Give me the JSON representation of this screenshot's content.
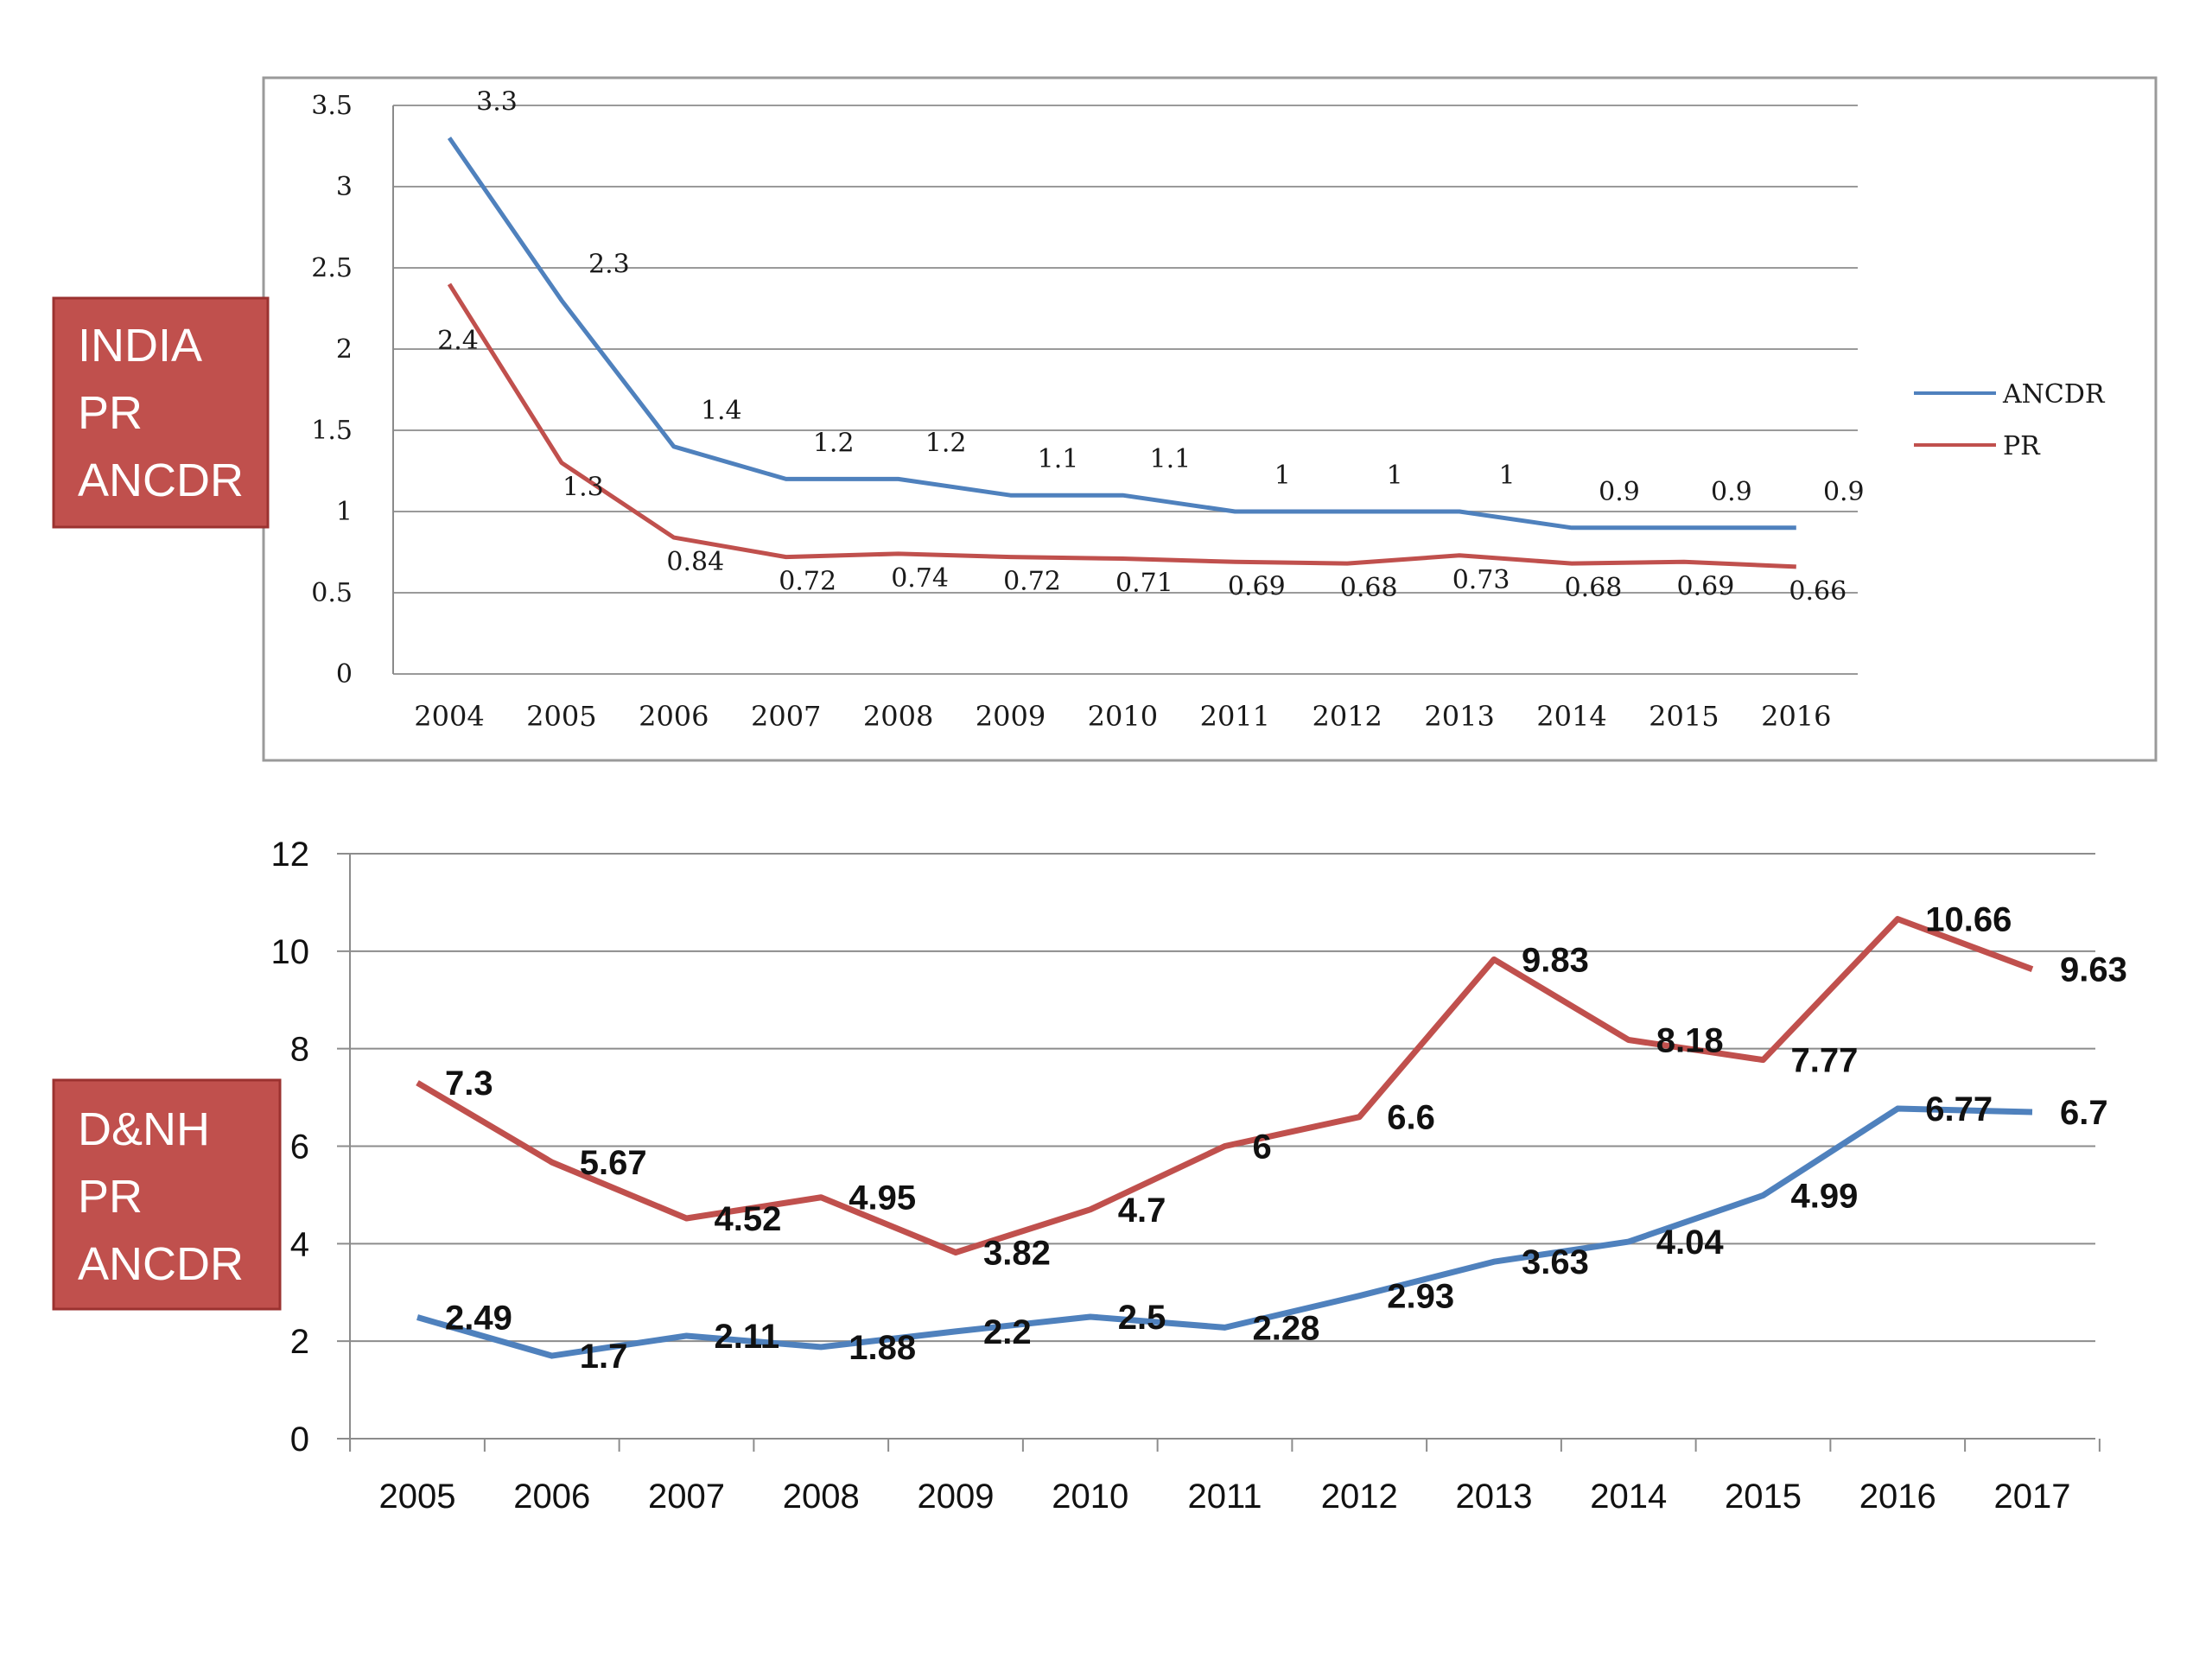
{
  "tags": [
    {
      "lines": [
        "INDIA",
        "PR",
        "ANCDR"
      ]
    },
    {
      "lines": [
        "D&NH",
        "PR",
        "ANCDR"
      ]
    }
  ],
  "colors": {
    "ancdr": "#4f81bd",
    "pr": "#c0504d",
    "tag_fill": "#c0504d",
    "tag_border": "#9b3230"
  },
  "chart_data": [
    {
      "type": "line",
      "x": [
        "2004",
        "2005",
        "2006",
        "2007",
        "2008",
        "2009",
        "2010",
        "2011",
        "2012",
        "2013",
        "2014",
        "2015",
        "2016"
      ],
      "ylim": [
        0,
        3.5
      ],
      "yticks": [
        "0",
        "0.5",
        "1",
        "1.5",
        "2",
        "2.5",
        "3",
        "3.5"
      ],
      "legend_position": "right",
      "grid": true,
      "series": [
        {
          "name": "ANCDR",
          "values": [
            3.3,
            2.3,
            1.4,
            1.2,
            1.2,
            1.1,
            1.1,
            1,
            1,
            1,
            0.9,
            0.9,
            0.9
          ],
          "labels": [
            "3.3",
            "2.3",
            "1.4",
            "1.2",
            "1.2",
            "1.1",
            "1.1",
            "1",
            "1",
            "1",
            "0.9",
            "0.9",
            "0.9"
          ]
        },
        {
          "name": "PR",
          "values": [
            2.4,
            1.3,
            0.84,
            0.72,
            0.74,
            0.72,
            0.71,
            0.69,
            0.68,
            0.73,
            0.68,
            0.69,
            0.66
          ],
          "labels": [
            "2.4",
            "1.3",
            "0.84",
            "0.72",
            "0.74",
            "0.72",
            "0.71",
            "0.69",
            "0.68",
            "0.73",
            "0.68",
            "0.69",
            "0.66"
          ]
        }
      ]
    },
    {
      "type": "line",
      "x": [
        "2005",
        "2006",
        "2007",
        "2008",
        "2009",
        "2010",
        "2011",
        "2012",
        "2013",
        "2014",
        "2015",
        "2016",
        "2017"
      ],
      "ylim": [
        0,
        12
      ],
      "yticks": [
        "0",
        "2",
        "4",
        "6",
        "8",
        "10",
        "12"
      ],
      "grid": true,
      "series": [
        {
          "values": [
            7.3,
            5.67,
            4.52,
            4.95,
            3.82,
            4.7,
            6,
            6.6,
            9.83,
            8.18,
            7.77,
            10.66,
            9.63
          ],
          "labels": [
            "7.3",
            "5.67",
            "4.52",
            "4.95",
            "3.82",
            "4.7",
            "6",
            "6.6",
            "9.83",
            "8.18",
            "7.77",
            "10.66",
            "9.63"
          ]
        },
        {
          "values": [
            2.49,
            1.7,
            2.11,
            1.88,
            2.2,
            2.5,
            2.28,
            2.93,
            3.63,
            4.04,
            4.99,
            6.77,
            6.7
          ],
          "labels": [
            "2.49",
            "1.7",
            "2.11",
            "1.88",
            "2.2",
            "2.5",
            "2.28",
            "2.93",
            "3.63",
            "4.04",
            "4.99",
            "6.77",
            "6.7"
          ]
        }
      ]
    }
  ]
}
